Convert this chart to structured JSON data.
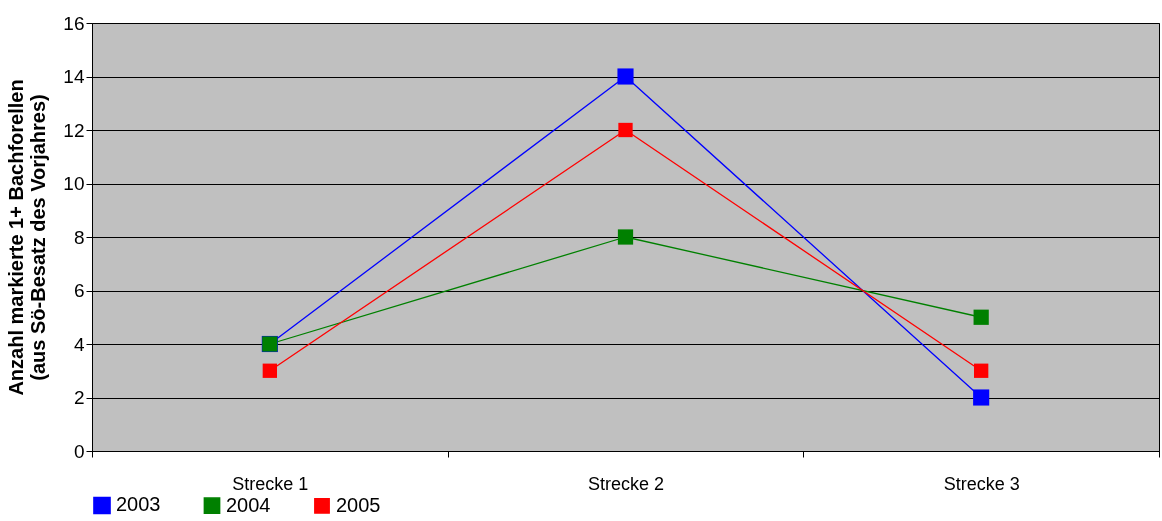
{
  "chart_data": {
    "type": "line",
    "ylabel": "Anzahl markierte 1+ Bachforellen\n(aus Sö-Besatz des Vorjahres)",
    "categories": [
      "Strecke 1",
      "Strecke 2",
      "Strecke 3"
    ],
    "series": [
      {
        "name": "2003",
        "color": "#0000ff",
        "values": [
          4,
          14,
          2
        ]
      },
      {
        "name": "2004",
        "color": "#008000",
        "values": [
          4,
          8,
          5
        ]
      },
      {
        "name": "2005",
        "color": "#ff0000",
        "values": [
          3,
          12,
          3
        ]
      }
    ],
    "ylim": [
      0,
      16
    ],
    "yticks": [
      0,
      2,
      4,
      6,
      8,
      10,
      12,
      14,
      16
    ],
    "grid": "y",
    "legend": "bottom left",
    "marker": "square"
  }
}
